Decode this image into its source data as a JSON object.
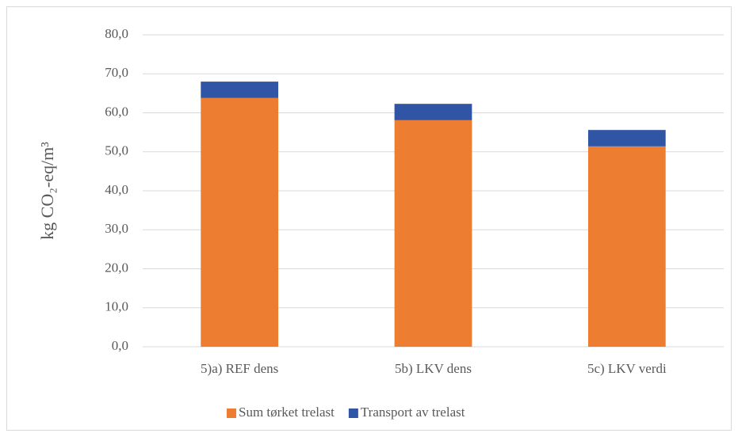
{
  "chart_data": {
    "type": "stacked_bar",
    "y_label": "kg CO₂-eq/m³",
    "categories": [
      "5)a) REF dens",
      "5b) LKV dens",
      "5c)  LKV verdi"
    ],
    "series": [
      {
        "name": "Sum tørket trelast",
        "color": "#ed7d31",
        "values": [
          63.8,
          58.1,
          51.4
        ]
      },
      {
        "name": "Transport av trelast",
        "color": "#2f55a4",
        "values": [
          4.2,
          4.2,
          4.2
        ]
      }
    ],
    "ylim": [
      0,
      80
    ],
    "yticks": [
      {
        "value": 0,
        "label": "0,0"
      },
      {
        "value": 10,
        "label": "10,0"
      },
      {
        "value": 20,
        "label": "20,0"
      },
      {
        "value": 30,
        "label": "30,0"
      },
      {
        "value": 40,
        "label": "40,0"
      },
      {
        "value": 50,
        "label": "50,0"
      },
      {
        "value": 60,
        "label": "60,0"
      },
      {
        "value": 70,
        "label": "70,0"
      },
      {
        "value": 80,
        "label": "80,0"
      }
    ],
    "grid": true,
    "legend": "bottom"
  }
}
